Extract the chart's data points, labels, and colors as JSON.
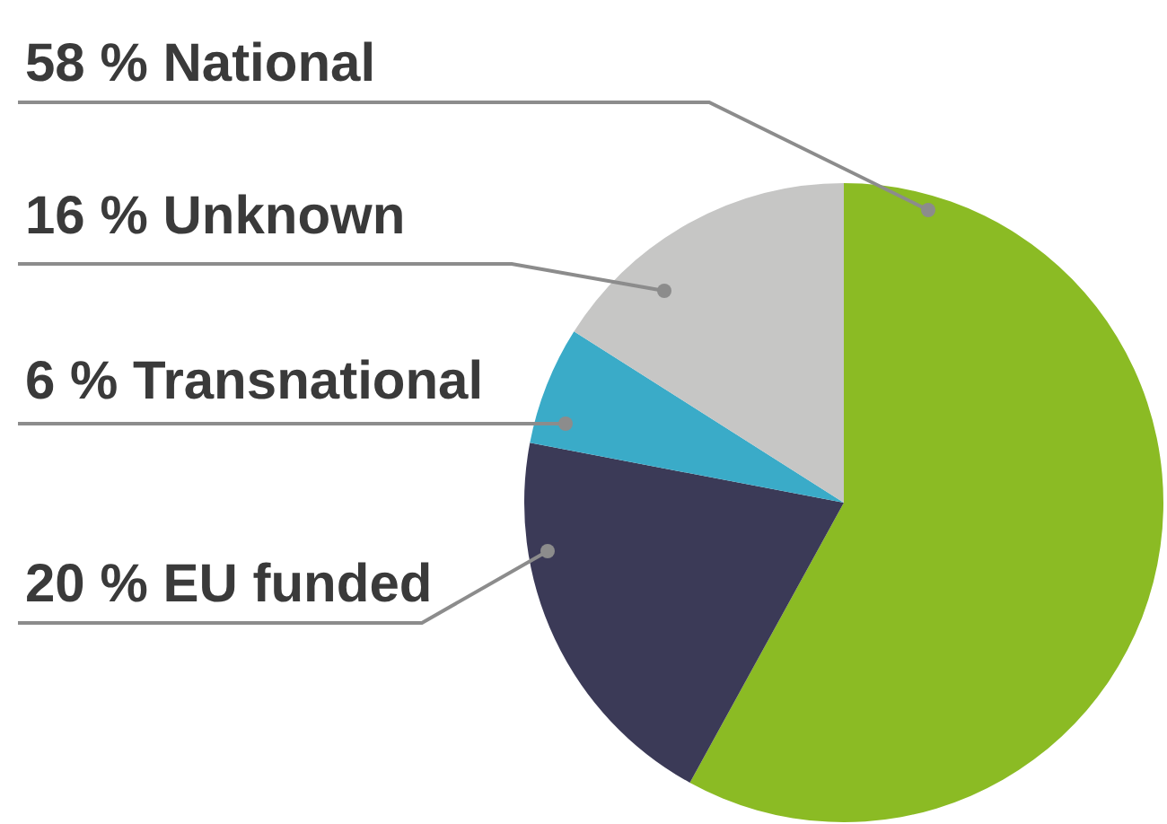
{
  "chart_data": {
    "type": "pie",
    "categories": [
      "National",
      "EU funded",
      "Transnational",
      "Unknown"
    ],
    "values": [
      58,
      20,
      6,
      16
    ],
    "value_labels": [
      "58 %",
      "20 %",
      "6 %",
      "16 %"
    ],
    "colors": [
      "#8bbb24",
      "#3b3a57",
      "#3aabc8",
      "#c6c6c5"
    ],
    "legend": false
  }
}
